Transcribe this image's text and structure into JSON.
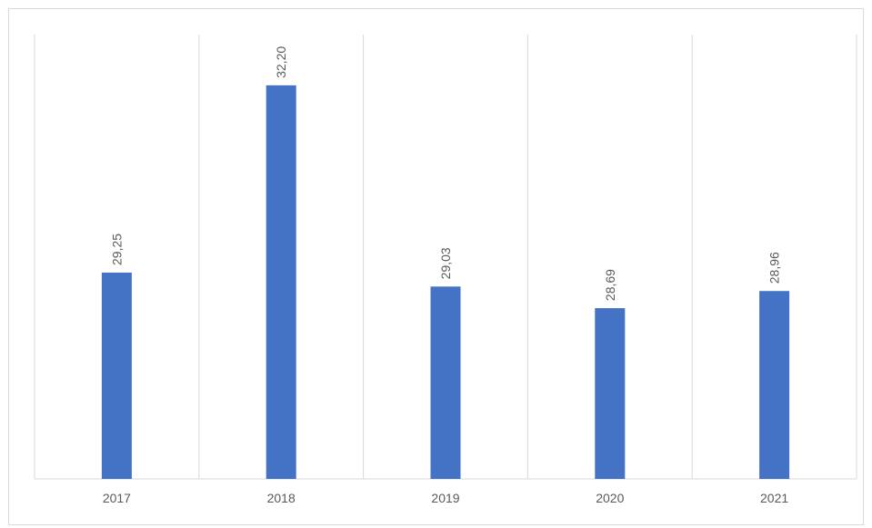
{
  "chart_data": {
    "type": "bar",
    "categories": [
      "2017",
      "2018",
      "2019",
      "2020",
      "2021"
    ],
    "values": [
      29.25,
      32.2,
      29.03,
      28.69,
      28.96
    ],
    "value_labels": [
      "29,25",
      "32,20",
      "29,03",
      "28,69",
      "28,96"
    ],
    "color": "#4472c4",
    "ylim": [
      26,
      33
    ]
  }
}
